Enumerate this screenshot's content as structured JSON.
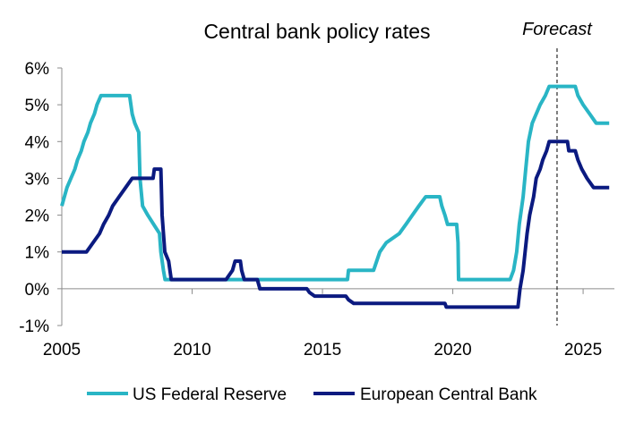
{
  "chart_data": {
    "type": "line",
    "title": "Central bank policy rates",
    "xlabel": "",
    "ylabel": "",
    "xlim": [
      2005,
      2026.2
    ],
    "ylim": [
      -1,
      6
    ],
    "x_ticks": [
      2005,
      2010,
      2015,
      2020,
      2025
    ],
    "x_tick_labels": [
      "2005",
      "2010",
      "2015",
      "2020",
      "2025"
    ],
    "y_ticks": [
      -1,
      0,
      1,
      2,
      3,
      4,
      5,
      6
    ],
    "y_tick_labels": [
      "-1%",
      "0%",
      "1%",
      "2%",
      "3%",
      "4%",
      "5%",
      "6%"
    ],
    "grid": false,
    "legend_position": "bottom",
    "annotation": {
      "text": "Forecast",
      "x": 2024.0,
      "style": "dashed vertical line"
    },
    "series": [
      {
        "name": "US Federal Reserve",
        "color": "#29B5C5",
        "points": [
          [
            2005.0,
            2.25
          ],
          [
            2005.1,
            2.5
          ],
          [
            2005.2,
            2.75
          ],
          [
            2005.35,
            3.0
          ],
          [
            2005.5,
            3.25
          ],
          [
            2005.6,
            3.5
          ],
          [
            2005.75,
            3.75
          ],
          [
            2005.85,
            4.0
          ],
          [
            2006.0,
            4.25
          ],
          [
            2006.1,
            4.5
          ],
          [
            2006.25,
            4.75
          ],
          [
            2006.35,
            5.0
          ],
          [
            2006.5,
            5.25
          ],
          [
            2007.6,
            5.25
          ],
          [
            2007.7,
            4.75
          ],
          [
            2007.8,
            4.5
          ],
          [
            2007.95,
            4.25
          ],
          [
            2008.0,
            3.0
          ],
          [
            2008.1,
            2.25
          ],
          [
            2008.3,
            2.0
          ],
          [
            2008.75,
            1.5
          ],
          [
            2008.8,
            1.0
          ],
          [
            2008.9,
            0.5
          ],
          [
            2008.96,
            0.25
          ],
          [
            2015.96,
            0.25
          ],
          [
            2016.0,
            0.5
          ],
          [
            2016.96,
            0.5
          ],
          [
            2017.2,
            1.0
          ],
          [
            2017.45,
            1.25
          ],
          [
            2017.95,
            1.5
          ],
          [
            2018.2,
            1.75
          ],
          [
            2018.45,
            2.0
          ],
          [
            2018.7,
            2.25
          ],
          [
            2018.96,
            2.5
          ],
          [
            2019.5,
            2.5
          ],
          [
            2019.58,
            2.25
          ],
          [
            2019.7,
            2.0
          ],
          [
            2019.8,
            1.75
          ],
          [
            2020.15,
            1.75
          ],
          [
            2020.2,
            1.25
          ],
          [
            2020.22,
            0.25
          ],
          [
            2022.2,
            0.25
          ],
          [
            2022.33,
            0.5
          ],
          [
            2022.45,
            1.0
          ],
          [
            2022.55,
            1.75
          ],
          [
            2022.7,
            2.5
          ],
          [
            2022.8,
            3.25
          ],
          [
            2022.9,
            4.0
          ],
          [
            2023.05,
            4.5
          ],
          [
            2023.2,
            4.75
          ],
          [
            2023.35,
            5.0
          ],
          [
            2023.55,
            5.25
          ],
          [
            2023.7,
            5.5
          ],
          [
            2024.7,
            5.5
          ],
          [
            2024.8,
            5.25
          ],
          [
            2025.0,
            5.0
          ],
          [
            2025.25,
            4.75
          ],
          [
            2025.5,
            4.5
          ],
          [
            2026.0,
            4.5
          ]
        ]
      },
      {
        "name": "European Central Bank",
        "color": "#0B1A80",
        "points": [
          [
            2005.0,
            1.0
          ],
          [
            2005.95,
            1.0
          ],
          [
            2006.2,
            1.25
          ],
          [
            2006.45,
            1.5
          ],
          [
            2006.6,
            1.75
          ],
          [
            2006.8,
            2.0
          ],
          [
            2006.95,
            2.25
          ],
          [
            2007.2,
            2.5
          ],
          [
            2007.45,
            2.75
          ],
          [
            2007.7,
            3.0
          ],
          [
            2008.5,
            3.0
          ],
          [
            2008.55,
            3.25
          ],
          [
            2008.8,
            3.25
          ],
          [
            2008.85,
            2.0
          ],
          [
            2008.95,
            1.0
          ],
          [
            2009.1,
            0.75
          ],
          [
            2009.2,
            0.25
          ],
          [
            2011.3,
            0.25
          ],
          [
            2011.55,
            0.5
          ],
          [
            2011.65,
            0.75
          ],
          [
            2011.85,
            0.75
          ],
          [
            2011.9,
            0.5
          ],
          [
            2012.0,
            0.25
          ],
          [
            2012.5,
            0.25
          ],
          [
            2012.6,
            0.0
          ],
          [
            2014.4,
            0.0
          ],
          [
            2014.5,
            -0.1
          ],
          [
            2014.7,
            -0.2
          ],
          [
            2015.9,
            -0.2
          ],
          [
            2016.0,
            -0.3
          ],
          [
            2016.2,
            -0.4
          ],
          [
            2019.7,
            -0.4
          ],
          [
            2019.75,
            -0.5
          ],
          [
            2022.5,
            -0.5
          ],
          [
            2022.58,
            0.0
          ],
          [
            2022.7,
            0.5
          ],
          [
            2022.85,
            1.5
          ],
          [
            2022.95,
            2.0
          ],
          [
            2023.1,
            2.5
          ],
          [
            2023.2,
            3.0
          ],
          [
            2023.35,
            3.25
          ],
          [
            2023.45,
            3.5
          ],
          [
            2023.6,
            3.75
          ],
          [
            2023.7,
            4.0
          ],
          [
            2024.4,
            4.0
          ],
          [
            2024.45,
            3.75
          ],
          [
            2024.7,
            3.75
          ],
          [
            2024.8,
            3.5
          ],
          [
            2024.95,
            3.25
          ],
          [
            2025.15,
            3.0
          ],
          [
            2025.4,
            2.75
          ],
          [
            2026.0,
            2.75
          ]
        ]
      }
    ]
  }
}
